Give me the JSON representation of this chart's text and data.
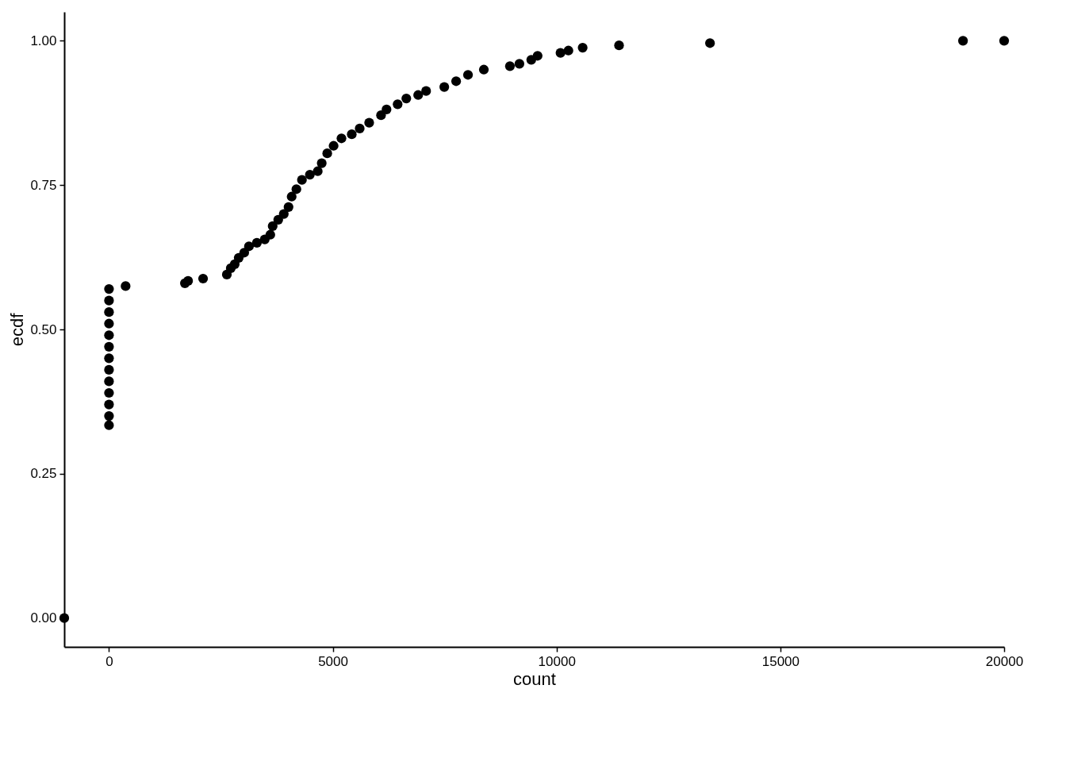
{
  "chart_data": {
    "type": "scatter",
    "xlabel": "count",
    "ylabel": "ecdf",
    "color": "#000000",
    "marker": "circle",
    "grid": false,
    "x": [
      -1000,
      0,
      0,
      0,
      0,
      0,
      0,
      0,
      0,
      0,
      0,
      0,
      0,
      0,
      371,
      1696,
      1767,
      2102,
      2633,
      2721,
      2809,
      2898,
      3021,
      3127,
      3304,
      3480,
      3604,
      3657,
      3781,
      3905,
      4011,
      4081,
      4187,
      4311,
      4488,
      4664,
      4753,
      4876,
      5018,
      5194,
      5424,
      5601,
      5813,
      6078,
      6201,
      6449,
      6643,
      6908,
      7085,
      7491,
      7756,
      8021,
      8375,
      8958,
      9170,
      9435,
      9576,
      10088,
      10265,
      10583,
      11396,
      13428,
      19081,
      20000
    ],
    "values": [
      0,
      0.334,
      0.35,
      0.37,
      0.39,
      0.41,
      0.43,
      0.45,
      0.47,
      0.49,
      0.51,
      0.53,
      0.55,
      0.57,
      0.575,
      0.58,
      0.584,
      0.588,
      0.595,
      0.606,
      0.613,
      0.624,
      0.633,
      0.644,
      0.65,
      0.656,
      0.664,
      0.679,
      0.69,
      0.7,
      0.712,
      0.73,
      0.743,
      0.759,
      0.768,
      0.774,
      0.788,
      0.805,
      0.818,
      0.831,
      0.838,
      0.848,
      0.858,
      0.871,
      0.881,
      0.89,
      0.9,
      0.906,
      0.913,
      0.92,
      0.93,
      0.941,
      0.95,
      0.956,
      0.96,
      0.967,
      0.974,
      0.979,
      0.983,
      0.988,
      0.992,
      0.996,
      1.0,
      1.0
    ],
    "xlim": [
      -1000,
      20000
    ],
    "xticks": [
      0,
      5000,
      10000,
      15000,
      20000
    ],
    "ylim": [
      -0.05,
      1.05
    ],
    "yticks": [
      {
        "value": 0,
        "label": "0.00"
      },
      {
        "value": 0.25,
        "label": "0.25"
      },
      {
        "value": 0.5,
        "label": "0.50"
      },
      {
        "value": 0.75,
        "label": "0.75"
      },
      {
        "value": 1,
        "label": "1.00"
      }
    ]
  }
}
